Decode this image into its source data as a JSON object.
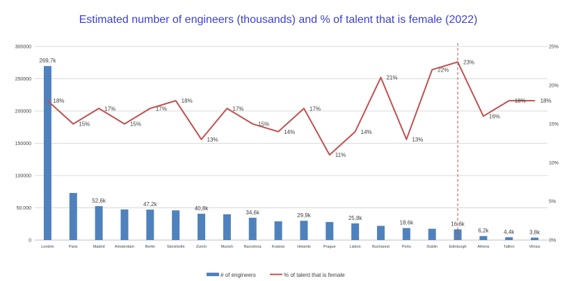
{
  "chart_data": {
    "type": "bar",
    "title": "Estimated number of engineers (thousands) and % of talent that is female (2022)",
    "categories": [
      "London",
      "Paris",
      "Madrid",
      "Amsterdam",
      "Berlin",
      "Stockholm",
      "Zurich",
      "Munich",
      "Barcelona",
      "Krakow",
      "Helsinki",
      "Prague",
      "Lisbon",
      "Bucharest",
      "Porto",
      "Dublin",
      "Edinburgh",
      "Athens",
      "Tallinn",
      "Vilnius"
    ],
    "series": [
      {
        "name": "# of engineers",
        "type": "bar",
        "axis": "left",
        "color": "#4f81bd",
        "values": [
          269700,
          73000,
          52600,
          47500,
          47200,
          46000,
          40800,
          40000,
          34600,
          29000,
          29900,
          28000,
          25800,
          22000,
          18600,
          17500,
          16600,
          6200,
          4400,
          3800
        ],
        "labels": [
          "269,7k",
          "",
          "52,6k",
          "",
          "47,2k",
          "",
          "40,8k",
          "",
          "34,6k",
          "",
          "29,9k",
          "",
          "25,8k",
          "",
          "18,6k",
          "",
          "16,6k",
          "6,2k",
          "4,4k",
          "3,8k"
        ]
      },
      {
        "name": "% of talent that is female",
        "type": "line",
        "axis": "right",
        "color": "#c0504d",
        "values": [
          18,
          15,
          17,
          15,
          17,
          18,
          13,
          17,
          15,
          14,
          17,
          11,
          14,
          21,
          13,
          22,
          23,
          16,
          18,
          18
        ],
        "labels": [
          "18%",
          "15%",
          "17%",
          "15%",
          "17%",
          "18%",
          "13%",
          "17%",
          "15%",
          "14%",
          "17%",
          "11%",
          "14%",
          "21%",
          "13%",
          "22%",
          "23%",
          "16%",
          "18%",
          "18%"
        ]
      }
    ],
    "left_axis": {
      "ylim": [
        0,
        300000
      ],
      "ticks": [
        "0",
        "50.000",
        "100000",
        "150000",
        "200000",
        "250000",
        "300000"
      ]
    },
    "right_axis": {
      "ylim": [
        0,
        25
      ],
      "ticks": [
        "0%",
        "5%",
        "10%",
        "15%",
        "20%",
        "25%"
      ]
    },
    "grid": true,
    "legend_position": "bottom",
    "annotation": {
      "type": "vertical-dashed-line",
      "category": "Edinburgh",
      "color": "#c0504d"
    }
  }
}
